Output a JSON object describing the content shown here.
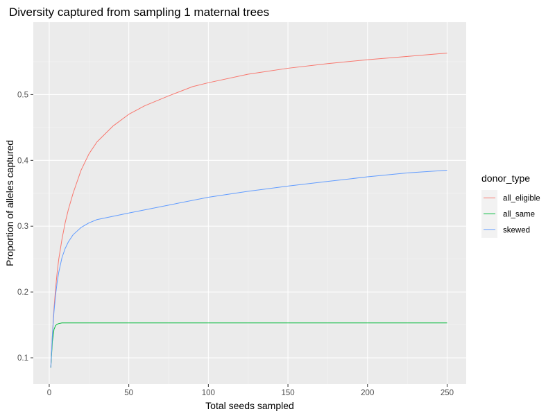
{
  "chart_data": {
    "type": "line",
    "title": "Diversity captured from sampling 1 maternal trees",
    "xlabel": "Total seeds sampled",
    "ylabel": "Proportion of alleles captured",
    "xlim": [
      -10,
      262
    ],
    "ylim": [
      0.06,
      0.61
    ],
    "x_ticks": [
      0,
      50,
      100,
      150,
      200,
      250
    ],
    "x_tick_labels": [
      "0",
      "50",
      "100",
      "150",
      "200",
      "250"
    ],
    "y_ticks": [
      0.1,
      0.2,
      0.3,
      0.4,
      0.5
    ],
    "y_tick_labels": [
      "0.1",
      "0.2",
      "0.3",
      "0.4",
      "0.5"
    ],
    "grid": true,
    "legend": {
      "title": "donor_type",
      "placement": "right"
    },
    "series": [
      {
        "name": "all_eligible",
        "color": "#F8766D",
        "x": [
          1,
          2,
          3,
          4,
          5,
          6,
          8,
          10,
          12,
          15,
          20,
          25,
          30,
          40,
          50,
          60,
          75,
          90,
          100,
          125,
          150,
          175,
          200,
          225,
          250
        ],
        "y": [
          0.085,
          0.135,
          0.175,
          0.205,
          0.23,
          0.25,
          0.28,
          0.305,
          0.325,
          0.35,
          0.385,
          0.41,
          0.428,
          0.452,
          0.47,
          0.483,
          0.498,
          0.512,
          0.518,
          0.531,
          0.54,
          0.547,
          0.553,
          0.558,
          0.563
        ]
      },
      {
        "name": "all_same",
        "color": "#00BA38",
        "x": [
          1,
          2,
          3,
          4,
          5,
          6,
          8,
          10,
          15,
          20,
          50,
          100,
          150,
          200,
          250
        ],
        "y": [
          0.085,
          0.125,
          0.143,
          0.149,
          0.151,
          0.152,
          0.153,
          0.153,
          0.153,
          0.153,
          0.153,
          0.153,
          0.153,
          0.153,
          0.153
        ]
      },
      {
        "name": "skewed",
        "color": "#619CFF",
        "x": [
          1,
          2,
          3,
          4,
          5,
          6,
          8,
          10,
          12,
          15,
          20,
          25,
          30,
          40,
          50,
          75,
          100,
          125,
          150,
          175,
          200,
          225,
          250
        ],
        "y": [
          0.085,
          0.135,
          0.17,
          0.195,
          0.215,
          0.23,
          0.252,
          0.266,
          0.276,
          0.287,
          0.298,
          0.305,
          0.31,
          0.315,
          0.32,
          0.332,
          0.344,
          0.353,
          0.361,
          0.368,
          0.375,
          0.381,
          0.385
        ]
      }
    ]
  }
}
